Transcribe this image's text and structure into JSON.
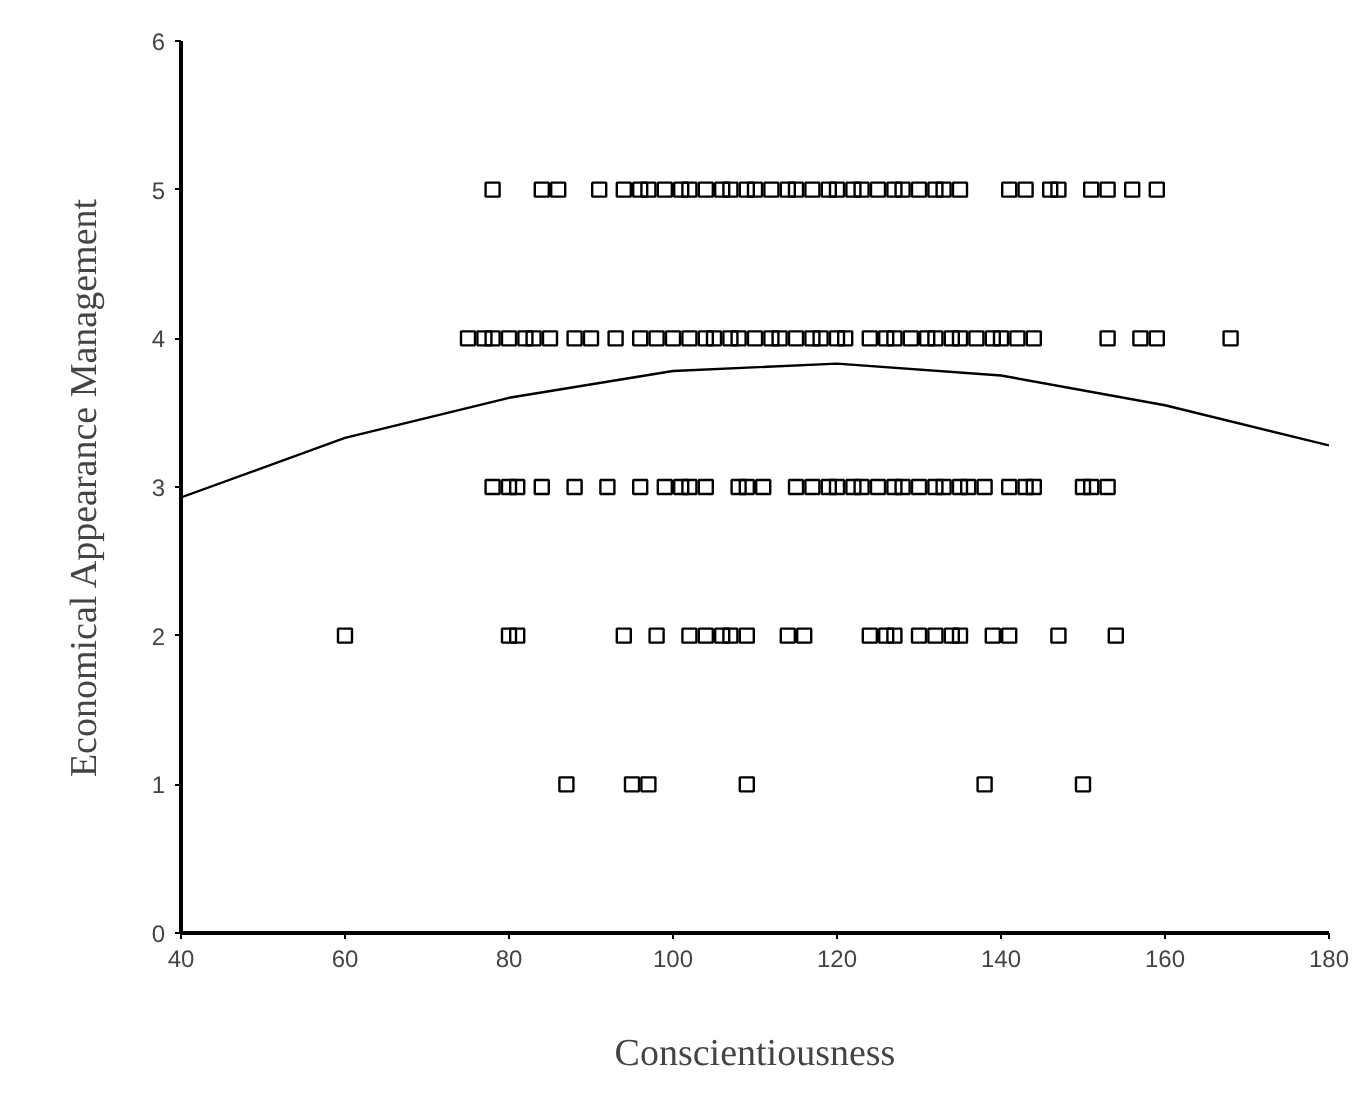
{
  "chart_data": {
    "type": "scatter",
    "xlabel": "Conscientiousness",
    "ylabel": "Economical Appearance Management",
    "xlim": [
      40,
      180
    ],
    "ylim": [
      0,
      6
    ],
    "xticks": [
      40,
      60,
      80,
      100,
      120,
      140,
      160,
      180
    ],
    "yticks": [
      0,
      1,
      2,
      3,
      4,
      5,
      6
    ],
    "grid": false,
    "series": [
      {
        "color": "#000000",
        "marker": "square",
        "x": [
          87,
          95,
          97,
          109,
          138,
          150,
          60,
          80,
          81,
          94,
          98,
          102,
          104,
          106,
          107,
          109,
          114,
          116,
          124,
          126,
          127,
          130,
          132,
          134,
          135,
          139,
          141,
          147,
          154,
          78,
          80,
          81,
          84,
          88,
          92,
          96,
          99,
          101,
          102,
          104,
          108,
          109,
          111,
          115,
          117,
          119,
          120,
          122,
          123,
          125,
          127,
          128,
          130,
          132,
          133,
          135,
          136,
          138,
          141,
          143,
          144,
          150,
          151,
          153,
          75,
          77,
          78,
          80,
          82,
          83,
          85,
          88,
          90,
          93,
          96,
          98,
          100,
          102,
          104,
          105,
          107,
          108,
          110,
          112,
          113,
          115,
          117,
          118,
          120,
          121,
          124,
          126,
          127,
          129,
          131,
          132,
          134,
          135,
          137,
          139,
          140,
          142,
          144,
          153,
          157,
          159,
          168,
          78,
          84,
          86,
          91,
          94,
          96,
          97,
          99,
          101,
          102,
          104,
          106,
          107,
          109,
          110,
          112,
          114,
          115,
          117,
          119,
          120,
          122,
          123,
          125,
          127,
          128,
          130,
          132,
          133,
          135,
          141,
          143,
          146,
          147,
          151,
          153,
          156,
          159
        ],
        "values": [
          1,
          1,
          1,
          1,
          1,
          1,
          2,
          2,
          2,
          2,
          2,
          2,
          2,
          2,
          2,
          2,
          2,
          2,
          2,
          2,
          2,
          2,
          2,
          2,
          2,
          2,
          2,
          2,
          2,
          3,
          3,
          3,
          3,
          3,
          3,
          3,
          3,
          3,
          3,
          3,
          3,
          3,
          3,
          3,
          3,
          3,
          3,
          3,
          3,
          3,
          3,
          3,
          3,
          3,
          3,
          3,
          3,
          3,
          3,
          3,
          3,
          3,
          3,
          3,
          4,
          4,
          4,
          4,
          4,
          4,
          4,
          4,
          4,
          4,
          4,
          4,
          4,
          4,
          4,
          4,
          4,
          4,
          4,
          4,
          4,
          4,
          4,
          4,
          4,
          4,
          4,
          4,
          4,
          4,
          4,
          4,
          4,
          4,
          4,
          4,
          4,
          4,
          4,
          4,
          4,
          4,
          4,
          5,
          5,
          5,
          5,
          5,
          5,
          5,
          5,
          5,
          5,
          5,
          5,
          5,
          5,
          5,
          5,
          5,
          5,
          5,
          5,
          5,
          5,
          5,
          5,
          5,
          5,
          5,
          5,
          5,
          5,
          5,
          5,
          5,
          5,
          5,
          5,
          5,
          5
        ]
      },
      {
        "type": "line",
        "color": "#000000",
        "x": [
          40,
          60,
          80,
          100,
          120,
          140,
          160,
          180
        ],
        "values": [
          2.93,
          3.33,
          3.6,
          3.78,
          3.83,
          3.75,
          3.55,
          3.28
        ]
      }
    ]
  }
}
